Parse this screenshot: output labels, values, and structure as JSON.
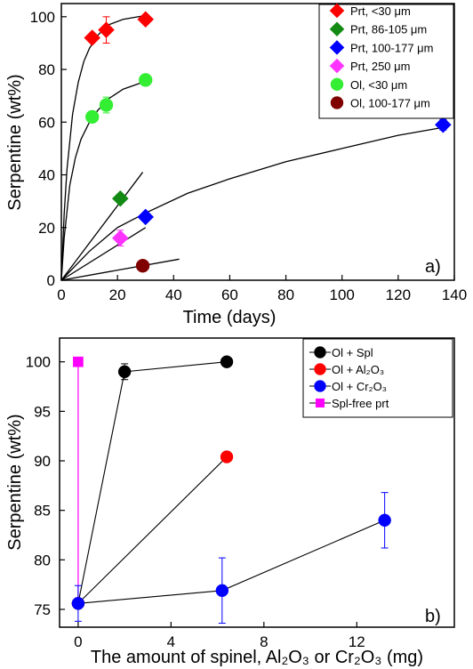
{
  "chart_data": [
    {
      "type": "scatter",
      "panel_label": "a)",
      "xlabel": "Time (days)",
      "ylabel": "Serpentine (wt%)",
      "xlim": [
        0,
        140
      ],
      "ylim": [
        0,
        105
      ],
      "x_ticks": [
        "0",
        "20",
        "40",
        "60",
        "80",
        "100",
        "120",
        "140"
      ],
      "y_ticks": [
        "0",
        "20",
        "40",
        "60",
        "80",
        "100"
      ],
      "grid": false,
      "legend_position": "top-right",
      "legend": [
        {
          "label": "Prt, <30 μm",
          "color": "#ff0000",
          "marker": "diamond"
        },
        {
          "label": "Prt, 86-105 μm",
          "color": "#138a13",
          "marker": "diamond"
        },
        {
          "label": "Prt, 100-177 μm",
          "color": "#0000ff",
          "marker": "diamond"
        },
        {
          "label": "Prt, 250 μm",
          "color": "#ff33ff",
          "marker": "diamond"
        },
        {
          "label": "Ol, <30 μm",
          "color": "#33ee33",
          "marker": "circle"
        },
        {
          "label": "Ol, 100-177 μm",
          "color": "#800000",
          "marker": "circle"
        }
      ],
      "series": [
        {
          "name": "Prt, <30 μm",
          "marker": "diamond",
          "color": "#ff0000",
          "points": [
            [
              11,
              92
            ],
            [
              16,
              95
            ],
            [
              30,
              99
            ]
          ],
          "errors": [
            0,
            5,
            0
          ]
        },
        {
          "name": "Prt, 86-105 μm",
          "marker": "diamond",
          "color": "#138a13",
          "points": [
            [
              21,
              31
            ]
          ],
          "errors": [
            0
          ]
        },
        {
          "name": "Prt, 100-177 μm",
          "marker": "diamond",
          "color": "#0000ff",
          "points": [
            [
              30,
              24
            ],
            [
              136,
              59
            ]
          ],
          "errors": [
            0,
            2
          ]
        },
        {
          "name": "Prt, 250 μm",
          "marker": "diamond",
          "color": "#ff33ff",
          "points": [
            [
              21,
              16
            ]
          ],
          "errors": [
            3
          ]
        },
        {
          "name": "Ol, <30 μm",
          "marker": "circle",
          "color": "#33ee33",
          "points": [
            [
              11,
              62
            ],
            [
              16,
              66.5
            ],
            [
              30,
              76
            ]
          ],
          "errors": [
            0,
            3,
            0
          ]
        },
        {
          "name": "Ol, 100-177 μm",
          "marker": "circle",
          "color": "#800000",
          "points": [
            [
              29,
              5.5
            ]
          ],
          "errors": [
            0
          ]
        }
      ],
      "fit_curves": [
        {
          "color": "#000000",
          "points": [
            [
              0,
              0
            ],
            [
              1,
              25
            ],
            [
              2,
              42
            ],
            [
              4,
              63
            ],
            [
              6,
              75
            ],
            [
              8,
              83
            ],
            [
              10,
              88
            ],
            [
              13,
              93
            ],
            [
              17,
              97
            ],
            [
              22,
              99
            ],
            [
              30,
              100.5
            ]
          ]
        },
        {
          "color": "#000000",
          "points": [
            [
              0,
              0
            ],
            [
              1,
              16
            ],
            [
              3,
              36
            ],
            [
              5,
              46.5
            ],
            [
              7,
              53.5
            ],
            [
              10,
              60
            ],
            [
              13,
              64.5
            ],
            [
              17,
              69
            ],
            [
              22,
              72.5
            ],
            [
              30,
              75.5
            ]
          ]
        },
        {
          "color": "#000000",
          "points": [
            [
              0,
              0
            ],
            [
              29,
              41
            ]
          ]
        },
        {
          "color": "#000000",
          "points": [
            [
              0,
              0
            ],
            [
              10,
              11
            ],
            [
              20,
              20
            ],
            [
              30,
              25.5
            ],
            [
              45,
              33
            ],
            [
              60,
              38.5
            ],
            [
              80,
              45
            ],
            [
              100,
              50
            ],
            [
              120,
              55
            ],
            [
              136,
              58
            ]
          ]
        },
        {
          "color": "#000000",
          "points": [
            [
              0,
              0
            ],
            [
              30,
              20
            ]
          ]
        },
        {
          "color": "#000000",
          "points": [
            [
              0,
              0
            ],
            [
              42,
              8
            ]
          ]
        }
      ]
    },
    {
      "type": "line",
      "panel_label": "b)",
      "xlabel": "The amount of spinel, Al₂O₃ or Cr₂O₃ (mg)",
      "ylabel": "Serpentine (wt%)",
      "xlim": [
        -0.8,
        16.2
      ],
      "ylim": [
        73.2,
        102.4
      ],
      "x_ticks": [
        "0",
        "4",
        "8",
        "12"
      ],
      "y_ticks": [
        "75",
        "80",
        "85",
        "90",
        "95",
        "100"
      ],
      "grid": false,
      "legend_position": "top-right",
      "legend": [
        {
          "label": "Ol + Spl",
          "color": "#000000",
          "marker": "circle"
        },
        {
          "label": "Ol + Al₂O₃",
          "color": "#ff0000",
          "marker": "circle"
        },
        {
          "label": "Ol + Cr₂O₃",
          "color": "#0000ff",
          "marker": "circle"
        },
        {
          "label": "Spl-free prt",
          "color": "#ff00ff",
          "marker": "square"
        }
      ],
      "series": [
        {
          "name": "Ol + Spl",
          "marker": "circle",
          "color": "#000000",
          "points": [
            [
              0,
              75.6
            ],
            [
              2,
              99
            ],
            [
              6.4,
              100
            ]
          ],
          "errors": [
            0,
            0.8,
            0
          ]
        },
        {
          "name": "Ol + Al₂O₃",
          "marker": "circle",
          "color": "#ff0000",
          "points": [
            [
              0,
              75.6
            ],
            [
              6.4,
              90.4
            ]
          ],
          "errors": [
            0,
            0
          ]
        },
        {
          "name": "Ol + Cr₂O₃",
          "marker": "circle",
          "color": "#0000ff",
          "points": [
            [
              0,
              75.6
            ],
            [
              6.2,
              76.9
            ],
            [
              13.2,
              84
            ]
          ],
          "errors": [
            1.8,
            3.3,
            2.8
          ]
        },
        {
          "name": "Spl-free prt",
          "marker": "square",
          "color": "#ff00ff",
          "points": [
            [
              0,
              100
            ]
          ],
          "errors": [
            0
          ]
        }
      ],
      "extra_lines": [
        {
          "color": "#ff00ff",
          "points": [
            [
              0,
              100
            ],
            [
              0,
              75.6
            ]
          ]
        }
      ]
    }
  ]
}
